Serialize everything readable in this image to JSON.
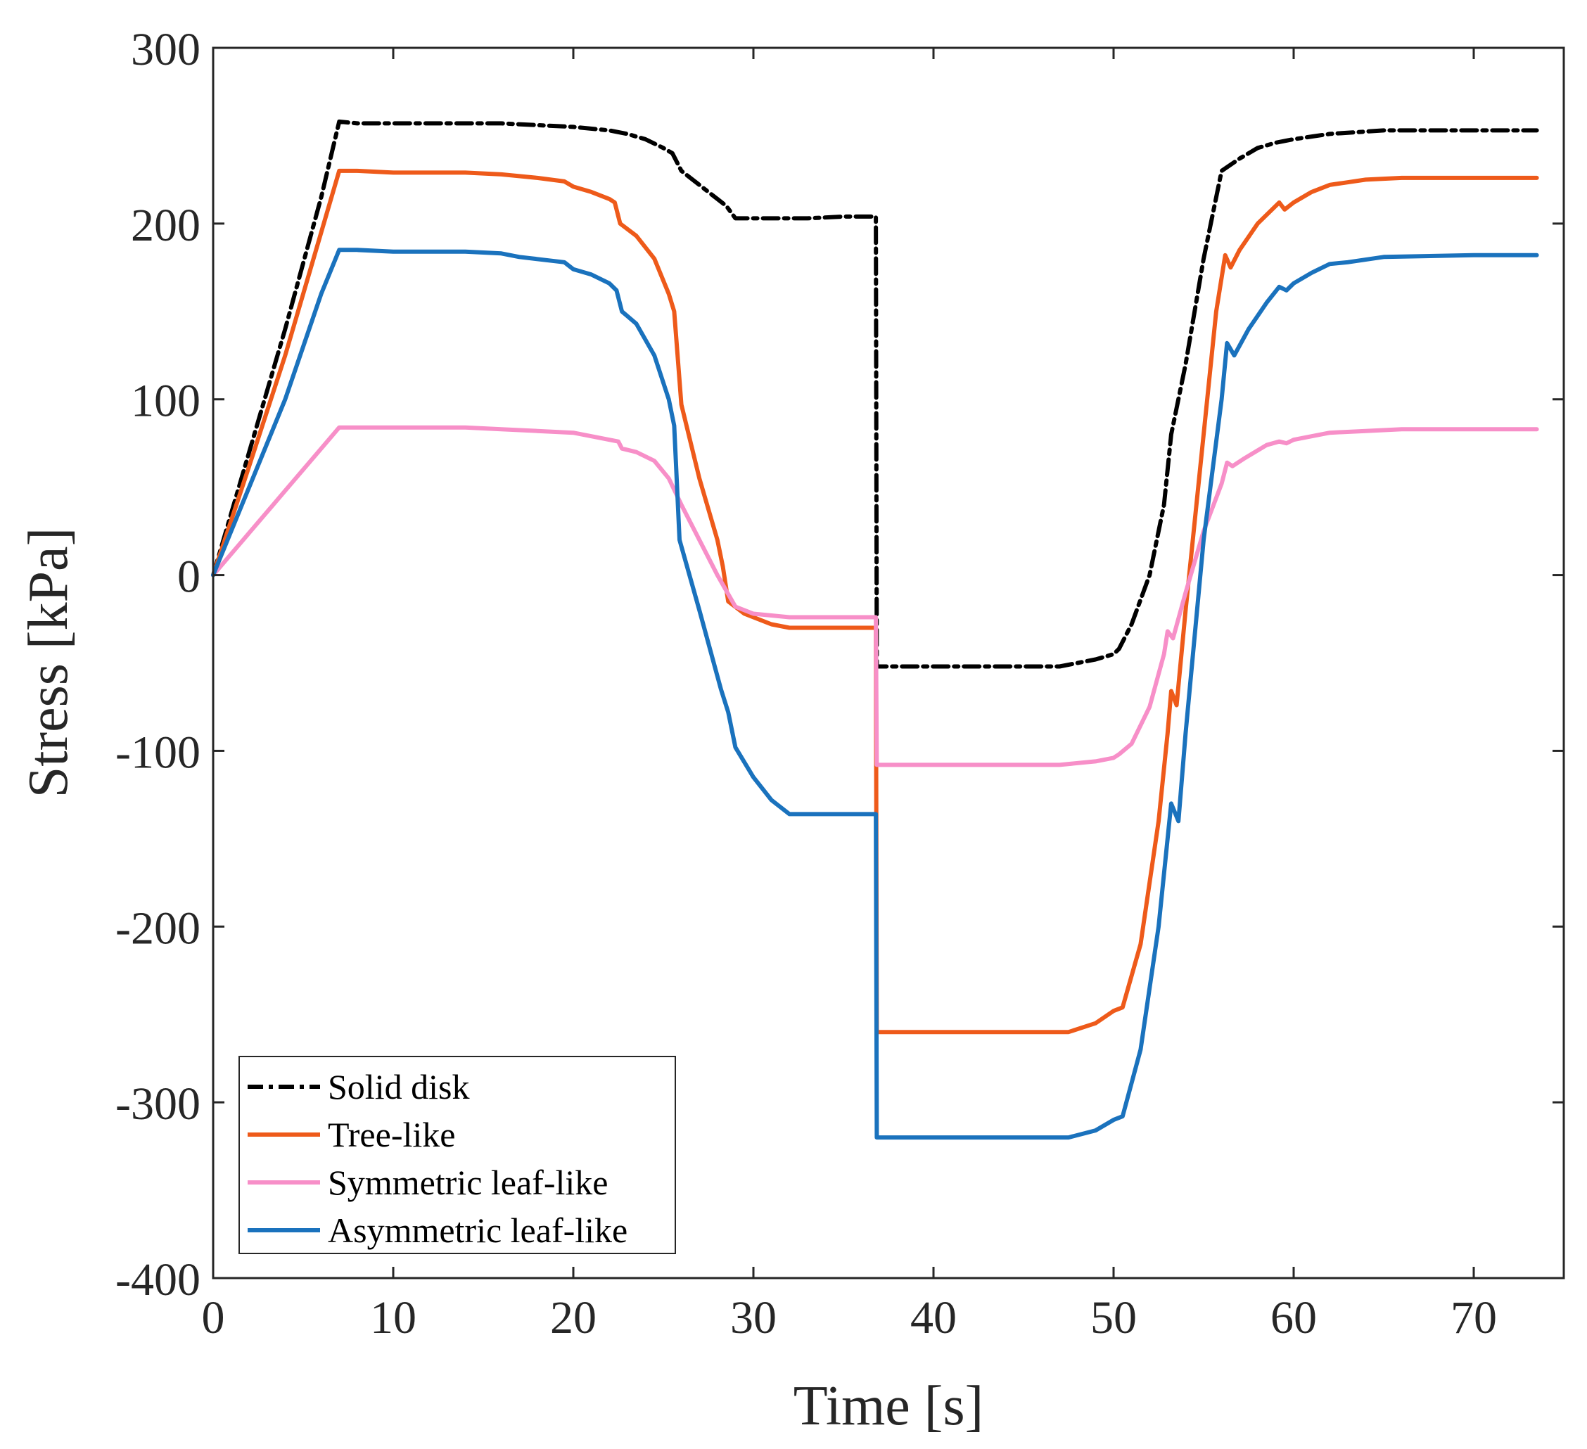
{
  "chart_data": {
    "type": "line",
    "title": "",
    "xlabel": "Time [s]",
    "ylabel": "Stress [kPa]",
    "xlim": [
      0,
      75
    ],
    "ylim": [
      -400,
      300
    ],
    "xticks": [
      0,
      10,
      20,
      30,
      40,
      50,
      60,
      70
    ],
    "yticks": [
      -400,
      -300,
      -200,
      -100,
      0,
      100,
      200,
      300
    ],
    "grid": false,
    "legend_position": "bottom-left",
    "series": [
      {
        "name": "Solid disk",
        "color": "#000000",
        "style": "dashdot",
        "points": [
          [
            0,
            0
          ],
          [
            2,
            70
          ],
          [
            4,
            140
          ],
          [
            6,
            215
          ],
          [
            7,
            258
          ],
          [
            8,
            257
          ],
          [
            10,
            257
          ],
          [
            14,
            257
          ],
          [
            16,
            257
          ],
          [
            18,
            256
          ],
          [
            20,
            255
          ],
          [
            22,
            253
          ],
          [
            23,
            251
          ],
          [
            24,
            248
          ],
          [
            25,
            243
          ],
          [
            25.5,
            240
          ],
          [
            26,
            230
          ],
          [
            27,
            222
          ],
          [
            28,
            214
          ],
          [
            28.5,
            210
          ],
          [
            29,
            203
          ],
          [
            31,
            203
          ],
          [
            33,
            203
          ],
          [
            35,
            204
          ],
          [
            36.5,
            204
          ],
          [
            36.8,
            204
          ],
          [
            36.85,
            -52
          ],
          [
            40,
            -52
          ],
          [
            44,
            -52
          ],
          [
            47,
            -52
          ],
          [
            49,
            -48
          ],
          [
            50,
            -45
          ],
          [
            50.3,
            -42
          ],
          [
            51,
            -28
          ],
          [
            52,
            0
          ],
          [
            52.8,
            40
          ],
          [
            53.2,
            80
          ],
          [
            54,
            120
          ],
          [
            55,
            180
          ],
          [
            56,
            230
          ],
          [
            57,
            237
          ],
          [
            58,
            243
          ],
          [
            59,
            246
          ],
          [
            60,
            248
          ],
          [
            62,
            251
          ],
          [
            65,
            253
          ],
          [
            70,
            253
          ],
          [
            73.5,
            253
          ]
        ]
      },
      {
        "name": "Tree-like",
        "color": "#EE5A1A",
        "style": "solid",
        "points": [
          [
            0,
            0
          ],
          [
            2,
            62
          ],
          [
            4,
            125
          ],
          [
            6,
            195
          ],
          [
            7,
            230
          ],
          [
            8,
            230
          ],
          [
            10,
            229
          ],
          [
            14,
            229
          ],
          [
            16,
            228
          ],
          [
            18,
            226
          ],
          [
            19.5,
            224
          ],
          [
            20,
            221
          ],
          [
            21,
            218
          ],
          [
            22,
            214
          ],
          [
            22.3,
            212
          ],
          [
            22.6,
            200
          ],
          [
            23.5,
            193
          ],
          [
            24.5,
            180
          ],
          [
            25.3,
            160
          ],
          [
            25.6,
            150
          ],
          [
            26,
            97
          ],
          [
            27,
            55
          ],
          [
            28,
            20
          ],
          [
            28.3,
            5
          ],
          [
            28.6,
            -15
          ],
          [
            29.5,
            -22
          ],
          [
            31,
            -28
          ],
          [
            32,
            -30
          ],
          [
            36.8,
            -30
          ],
          [
            36.85,
            -260
          ],
          [
            40,
            -260
          ],
          [
            44,
            -260
          ],
          [
            47.5,
            -260
          ],
          [
            49,
            -255
          ],
          [
            50,
            -248
          ],
          [
            50.5,
            -246
          ],
          [
            51.5,
            -210
          ],
          [
            52.5,
            -140
          ],
          [
            53,
            -90
          ],
          [
            53.2,
            -66
          ],
          [
            53.5,
            -74
          ],
          [
            54,
            -20
          ],
          [
            55,
            80
          ],
          [
            55.7,
            150
          ],
          [
            56.2,
            182
          ],
          [
            56.5,
            175
          ],
          [
            57,
            185
          ],
          [
            58,
            200
          ],
          [
            59.2,
            212
          ],
          [
            59.5,
            208
          ],
          [
            60,
            212
          ],
          [
            61,
            218
          ],
          [
            62,
            222
          ],
          [
            64,
            225
          ],
          [
            66,
            226
          ],
          [
            70,
            226
          ],
          [
            73.5,
            226
          ]
        ]
      },
      {
        "name": "Symmetric leaf-like",
        "color": "#F78FC8",
        "style": "solid",
        "points": [
          [
            0,
            0
          ],
          [
            2,
            24
          ],
          [
            4,
            48
          ],
          [
            6,
            72
          ],
          [
            7,
            84
          ],
          [
            8,
            84
          ],
          [
            10,
            84
          ],
          [
            14,
            84
          ],
          [
            16,
            83
          ],
          [
            18,
            82
          ],
          [
            20,
            81
          ],
          [
            21,
            79
          ],
          [
            22,
            77
          ],
          [
            22.5,
            76
          ],
          [
            22.7,
            72
          ],
          [
            23.5,
            70
          ],
          [
            24.5,
            65
          ],
          [
            25.3,
            55
          ],
          [
            26,
            40
          ],
          [
            27,
            20
          ],
          [
            28,
            0
          ],
          [
            29,
            -18
          ],
          [
            30,
            -22
          ],
          [
            31,
            -23
          ],
          [
            32,
            -24
          ],
          [
            36.8,
            -24
          ],
          [
            36.85,
            -108
          ],
          [
            40,
            -108
          ],
          [
            44,
            -108
          ],
          [
            47,
            -108
          ],
          [
            49,
            -106
          ],
          [
            50,
            -104
          ],
          [
            50.3,
            -102
          ],
          [
            51,
            -96
          ],
          [
            52,
            -75
          ],
          [
            52.8,
            -45
          ],
          [
            53,
            -32
          ],
          [
            53.3,
            -36
          ],
          [
            54,
            -10
          ],
          [
            55,
            25
          ],
          [
            56,
            52
          ],
          [
            56.3,
            64
          ],
          [
            56.6,
            62
          ],
          [
            57.2,
            66
          ],
          [
            58.5,
            74
          ],
          [
            59.2,
            76
          ],
          [
            59.6,
            75
          ],
          [
            60,
            77
          ],
          [
            62,
            81
          ],
          [
            64,
            82
          ],
          [
            66,
            83
          ],
          [
            70,
            83
          ],
          [
            73.5,
            83
          ]
        ]
      },
      {
        "name": "Asymmetric leaf-like",
        "color": "#1A72BD",
        "style": "solid",
        "points": [
          [
            0,
            0
          ],
          [
            2,
            50
          ],
          [
            4,
            100
          ],
          [
            6,
            160
          ],
          [
            7,
            185
          ],
          [
            8,
            185
          ],
          [
            10,
            184
          ],
          [
            14,
            184
          ],
          [
            16,
            183
          ],
          [
            17,
            181
          ],
          [
            19.5,
            178
          ],
          [
            20,
            174
          ],
          [
            21,
            171
          ],
          [
            22,
            166
          ],
          [
            22.4,
            162
          ],
          [
            22.7,
            150
          ],
          [
            23.5,
            143
          ],
          [
            24.5,
            125
          ],
          [
            25.3,
            100
          ],
          [
            25.6,
            85
          ],
          [
            25.9,
            20
          ],
          [
            27,
            -20
          ],
          [
            28.2,
            -65
          ],
          [
            28.6,
            -78
          ],
          [
            29,
            -98
          ],
          [
            30,
            -115
          ],
          [
            31,
            -128
          ],
          [
            32,
            -136
          ],
          [
            36.8,
            -136
          ],
          [
            36.85,
            -320
          ],
          [
            40,
            -320
          ],
          [
            44,
            -320
          ],
          [
            47.5,
            -320
          ],
          [
            49,
            -316
          ],
          [
            50,
            -310
          ],
          [
            50.5,
            -308
          ],
          [
            51.5,
            -270
          ],
          [
            52.5,
            -200
          ],
          [
            53.2,
            -130
          ],
          [
            53.6,
            -140
          ],
          [
            54,
            -90
          ],
          [
            55,
            20
          ],
          [
            56,
            100
          ],
          [
            56.3,
            132
          ],
          [
            56.7,
            125
          ],
          [
            57.5,
            140
          ],
          [
            58.5,
            155
          ],
          [
            59.2,
            164
          ],
          [
            59.6,
            162
          ],
          [
            60,
            166
          ],
          [
            61,
            172
          ],
          [
            62,
            177
          ],
          [
            63,
            178
          ],
          [
            65,
            181
          ],
          [
            70,
            182
          ],
          [
            73.5,
            182
          ]
        ]
      }
    ]
  }
}
